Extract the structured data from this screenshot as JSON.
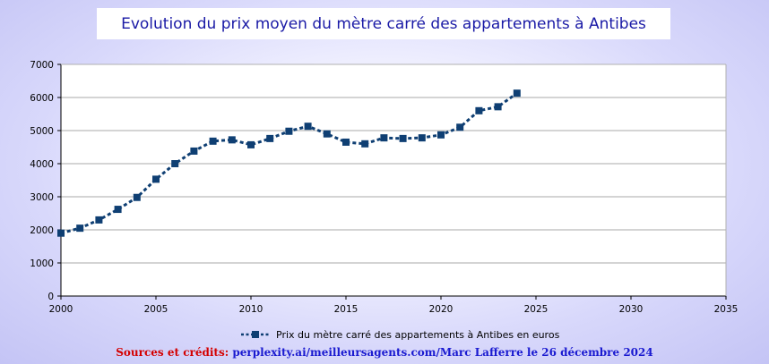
{
  "title": "Evolution du prix moyen du mètre carré des appartements à Antibes",
  "credits": {
    "label": "Sources et crédits:",
    "source": "perplexity.ai/meilleursagents.com/Marc Lafferre le 26 décembre 2024"
  },
  "colors": {
    "series": "#0f3f73",
    "title": "#1a1aa6",
    "grid": "#a9a9a9"
  },
  "chart_data": {
    "type": "line",
    "title": "Evolution du prix moyen du mètre carré des appartements à Antibes",
    "xlabel": "",
    "ylabel": "",
    "xlim": [
      2000,
      2035
    ],
    "ylim": [
      0,
      7000
    ],
    "x_ticks": [
      2000,
      2005,
      2010,
      2015,
      2020,
      2025,
      2030,
      2035
    ],
    "y_ticks": [
      0,
      1000,
      2000,
      3000,
      4000,
      5000,
      6000,
      7000
    ],
    "grid": "horizontal",
    "legend_position": "bottom",
    "series": [
      {
        "name": "Prix du mètre carré des appartements à Antibes en euros",
        "line_style": "dashed",
        "marker": "square",
        "x": [
          2000,
          2001,
          2002,
          2003,
          2004,
          2005,
          2006,
          2007,
          2008,
          2009,
          2010,
          2011,
          2012,
          2013,
          2014,
          2015,
          2016,
          2017,
          2018,
          2019,
          2020,
          2021,
          2022,
          2023,
          2024
        ],
        "y": [
          1900,
          2050,
          2300,
          2620,
          2980,
          3530,
          4000,
          4380,
          4680,
          4720,
          4570,
          4760,
          4980,
          5130,
          4900,
          4650,
          4600,
          4780,
          4760,
          4780,
          4870,
          5100,
          5600,
          5720,
          6130
        ]
      }
    ]
  }
}
